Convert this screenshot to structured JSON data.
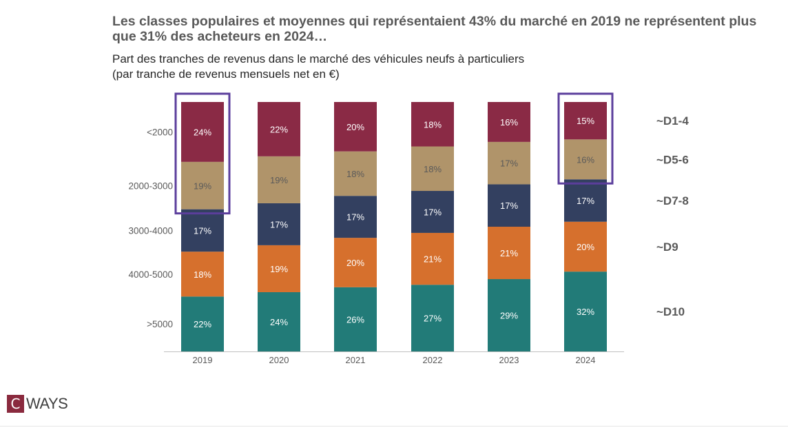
{
  "title": "Les classes populaires et moyennes qui représentaient 43% du marché en 2019 ne représentent plus que 31% des acheteurs en 2024…",
  "subtitle": [
    "Part des tranches de revenus dans le marché des véhicules neufs à particuliers",
    "(par tranche de revenus mensuels net en €)"
  ],
  "logo": {
    "mark": "C",
    "text": "WAYS",
    "color": "#8a2a3e"
  },
  "chart_data": {
    "type": "bar",
    "stacked": true,
    "categories": [
      "2019",
      "2020",
      "2021",
      "2022",
      "2023",
      "2024"
    ],
    "series": [
      {
        "name": ">5000",
        "color": "#227b78",
        "label_color": "#ffffff",
        "values": [
          22,
          24,
          26,
          27,
          29,
          32
        ]
      },
      {
        "name": "4000-5000",
        "color": "#d6702d",
        "label_color": "#ffffff",
        "values": [
          18,
          19,
          20,
          21,
          21,
          20
        ]
      },
      {
        "name": "3000-4000",
        "color": "#334060",
        "label_color": "#ffffff",
        "values": [
          17,
          17,
          17,
          17,
          17,
          17
        ]
      },
      {
        "name": "2000-3000",
        "color": "#b0946a",
        "label_color": "#5a5a5a",
        "values": [
          19,
          19,
          18,
          18,
          17,
          16
        ]
      },
      {
        "name": "<2000",
        "color": "#8a2a45",
        "label_color": "#ffffff",
        "values": [
          24,
          22,
          20,
          18,
          16,
          15
        ]
      }
    ],
    "value_suffix": "%",
    "right_labels": [
      "~D1-4",
      "~D5-6",
      "~D7-8",
      "~D9",
      "~D10"
    ],
    "highlighted": [
      {
        "category": "2019",
        "series": [
          "<2000",
          "2000-3000"
        ]
      },
      {
        "category": "2024",
        "series": [
          "<2000",
          "2000-3000"
        ]
      }
    ],
    "highlight_color": "#5b3e9c",
    "ylim": [
      0,
      100
    ],
    "grid": false
  }
}
